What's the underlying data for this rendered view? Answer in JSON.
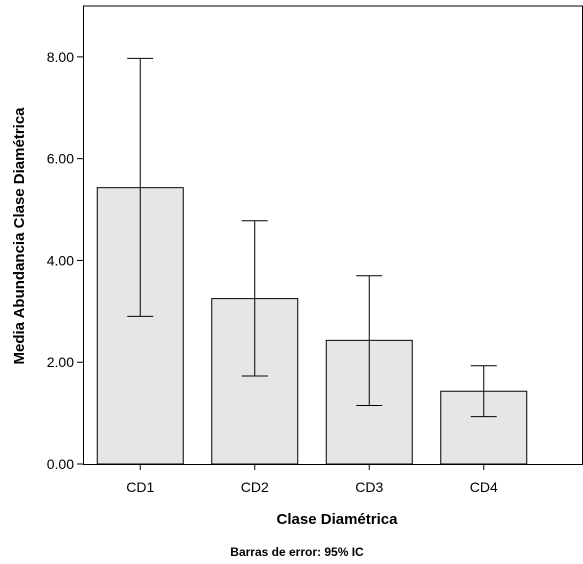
{
  "chart_data": {
    "type": "bar",
    "categories": [
      "CD1",
      "CD2",
      "CD3",
      "CD4"
    ],
    "values": [
      5.43,
      3.25,
      2.43,
      1.43
    ],
    "error_bars": {
      "lower": [
        2.9,
        1.73,
        1.15,
        0.93
      ],
      "upper": [
        7.97,
        4.78,
        3.7,
        1.93
      ]
    },
    "xlabel": "Clase Diamétrica",
    "ylabel": "Media Abundancia Clase Diamétrica",
    "ylim": [
      0,
      9
    ],
    "yticks": [
      0,
      2,
      4,
      6,
      8
    ],
    "ytick_labels": [
      "0.00",
      "2.00",
      "4.00",
      "6.00",
      "8.00"
    ],
    "footnote": "Barras de error: 95% IC",
    "grid": false,
    "legend": "none",
    "colors": {
      "bar_fill": "#e6e6e6",
      "bar_stroke": "#000000",
      "axis": "#000000"
    }
  }
}
